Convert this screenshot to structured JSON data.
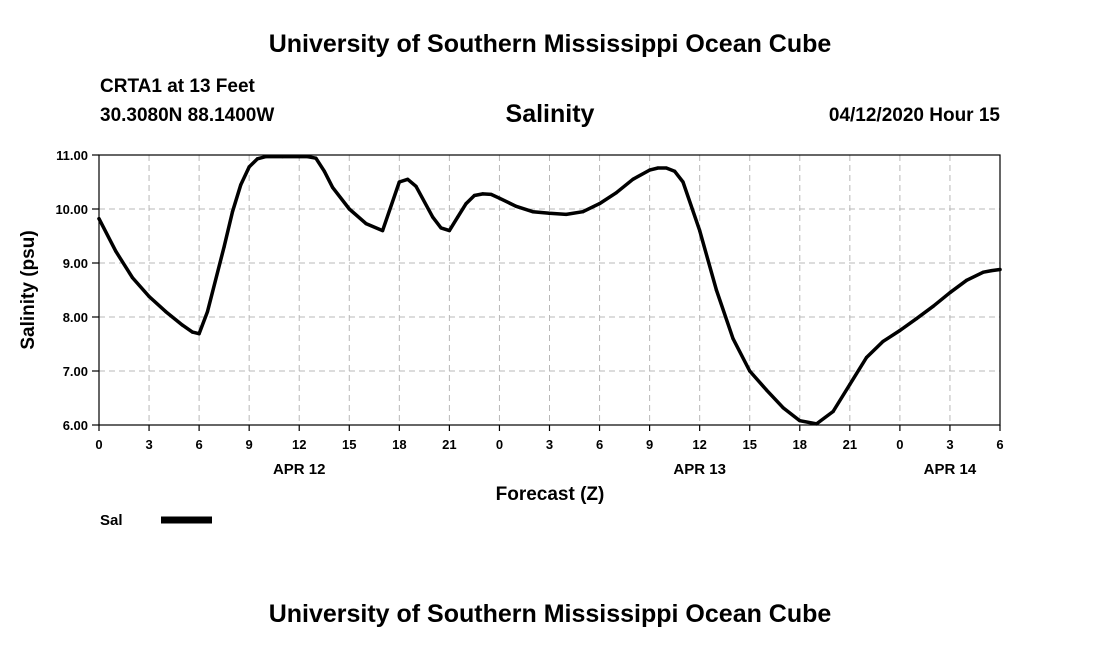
{
  "header": {
    "title": "University of Southern Mississippi Ocean Cube",
    "station": "CRTA1 at 13 Feet",
    "coordinates": "30.3080N 88.1400W",
    "variable": "Salinity",
    "datetime": "04/12/2020 Hour 15"
  },
  "footer": {
    "title": "University of Southern Mississippi Ocean Cube"
  },
  "legend": {
    "label": "Sal"
  },
  "chart_data": {
    "type": "line",
    "title": "Salinity",
    "xlabel": "Forecast (Z)",
    "ylabel": "Salinity (psu)",
    "xlim": [
      0,
      54
    ],
    "ylim": [
      6.0,
      11.0
    ],
    "x_ticks": [
      0,
      3,
      6,
      9,
      12,
      15,
      18,
      21,
      24,
      27,
      30,
      33,
      36,
      39,
      42,
      45,
      48,
      51,
      54
    ],
    "x_tick_labels": [
      "0",
      "3",
      "6",
      "9",
      "12",
      "15",
      "18",
      "21",
      "0",
      "3",
      "6",
      "9",
      "12",
      "15",
      "18",
      "21",
      "0",
      "3",
      "6"
    ],
    "date_labels": [
      {
        "x": 12,
        "label": "APR 12"
      },
      {
        "x": 36,
        "label": "APR 13"
      },
      {
        "x": 51,
        "label": "APR 14"
      }
    ],
    "y_ticks": [
      6.0,
      7.0,
      8.0,
      9.0,
      10.0,
      11.0
    ],
    "y_tick_labels": [
      "6.00",
      "7.00",
      "8.00",
      "9.00",
      "10.00",
      "11.00"
    ],
    "grid": true,
    "legend_position": "bottom-left",
    "series": [
      {
        "name": "Sal",
        "color": "#000000",
        "x": [
          0,
          1,
          2,
          3,
          4,
          5,
          5.6,
          6,
          6.5,
          7.5,
          8,
          8.5,
          9,
          9.5,
          10,
          11,
          12,
          12.5,
          13,
          13.5,
          14,
          15,
          16,
          17,
          18,
          18.5,
          19,
          20,
          20.5,
          21,
          21.5,
          22,
          22.5,
          23,
          23.5,
          24,
          25,
          26,
          27,
          28,
          29,
          30,
          31,
          32,
          33,
          33.5,
          34,
          34.5,
          35,
          36,
          37,
          38,
          39,
          40,
          41,
          42,
          43,
          44,
          45,
          46,
          47,
          48,
          49,
          50,
          51,
          52,
          53,
          53.5,
          54
        ],
        "values": [
          9.82,
          9.22,
          8.73,
          8.38,
          8.1,
          7.85,
          7.72,
          7.69,
          8.1,
          9.3,
          9.95,
          10.45,
          10.78,
          10.93,
          10.97,
          10.97,
          10.97,
          10.97,
          10.94,
          10.7,
          10.4,
          10.0,
          9.73,
          9.6,
          10.5,
          10.55,
          10.42,
          9.85,
          9.65,
          9.6,
          9.85,
          10.1,
          10.25,
          10.28,
          10.27,
          10.2,
          10.05,
          9.95,
          9.92,
          9.9,
          9.95,
          10.1,
          10.3,
          10.55,
          10.72,
          10.76,
          10.76,
          10.7,
          10.5,
          9.6,
          8.5,
          7.6,
          7.0,
          6.65,
          6.32,
          6.08,
          6.02,
          6.25,
          6.75,
          7.25,
          7.55,
          7.75,
          7.97,
          8.2,
          8.45,
          8.68,
          8.83,
          8.86,
          8.88
        ]
      }
    ]
  }
}
